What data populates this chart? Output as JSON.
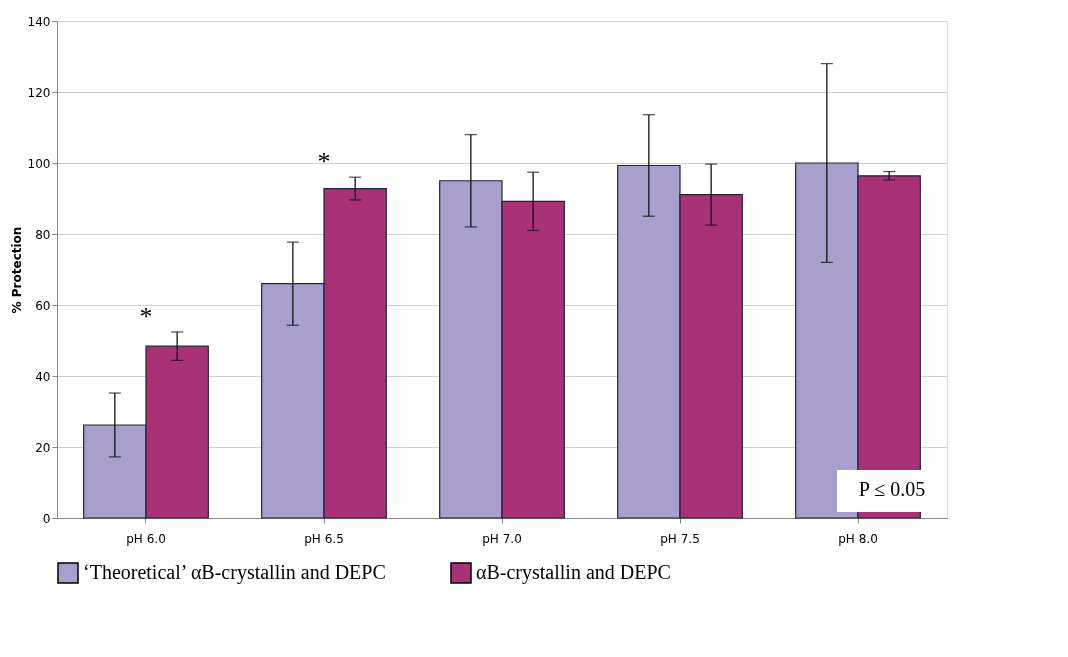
{
  "chart_data": {
    "type": "bar",
    "ylabel": "% Protection",
    "categories": [
      "pH 6.0",
      "pH 6.5",
      "pH 7.0",
      "pH 7.5",
      "pH 8.0"
    ],
    "series": [
      {
        "name": "‘Theoretical’ αB-crystallin and DEPC",
        "color": "#a99fcc",
        "values": [
          26.2,
          66,
          95,
          99.3,
          100
        ],
        "errors": [
          9,
          11.7,
          13,
          14.3,
          28
        ]
      },
      {
        "name": "αB-crystallin and DEPC",
        "color": "#a93275",
        "values": [
          48.4,
          92.8,
          89.2,
          91.1,
          96.4
        ],
        "errors": [
          4,
          3.2,
          8.2,
          8.6,
          1.2
        ]
      }
    ],
    "ylim": [
      0,
      140
    ],
    "yticks": [
      0,
      20,
      40,
      60,
      80,
      100,
      120,
      140
    ],
    "grid": "y",
    "legend": "bottom",
    "annotations": [
      "*",
      "*",
      "P ≤ 0.05"
    ]
  }
}
